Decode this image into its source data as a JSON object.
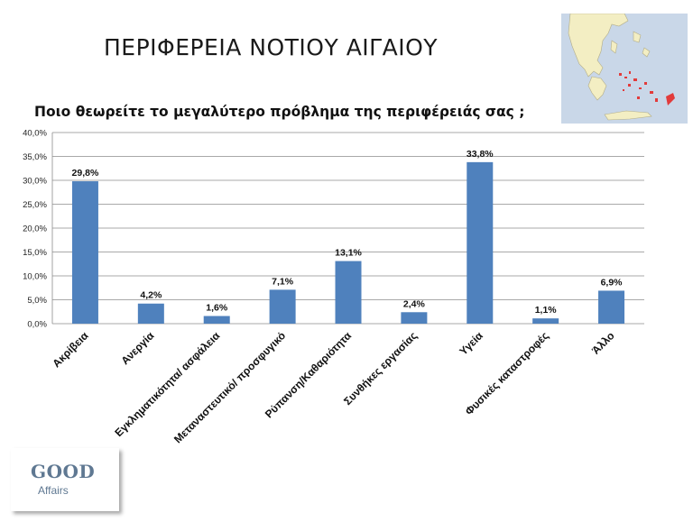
{
  "page": {
    "title": "ΠΕΡΙΦΕΡΕΙΑ ΝΟΤΙΟΥ ΑΙΓΑΙΟΥ",
    "question": "Ποιο θεωρείτε το μεγαλύτερο πρόβλημα της περιφέρειάς σας ;"
  },
  "logo": {
    "word1": "GOOD",
    "word2": "Affairs"
  },
  "colors": {
    "bar": "#4f81bd",
    "grid": "#8c8c8c",
    "map_sea": "#c9d7e8",
    "map_land": "#f3eec3",
    "map_highlight": "#e23b3b"
  },
  "chart_data": {
    "type": "bar",
    "categories": [
      "Ακρίβεια",
      "Ανεργία",
      "Εγκληματικότητα/ ασφάλεια",
      "Μεταναστευτικό/ προσφυγικό",
      "Ρύπανση/Καθαριότητα",
      "Συνθήκες εργασίας",
      "Υγεία",
      "Φυσικές καταστροφές",
      "Άλλο"
    ],
    "values": [
      29.8,
      4.2,
      1.6,
      7.1,
      13.1,
      2.4,
      33.8,
      1.1,
      6.9
    ],
    "data_labels": [
      "29,8%",
      "4,2%",
      "1,6%",
      "7,1%",
      "13,1%",
      "2,4%",
      "33,8%",
      "1,1%",
      "6,9%"
    ],
    "ylim": [
      0,
      40
    ],
    "yticks": [
      "0,0%",
      "5,0%",
      "10,0%",
      "15,0%",
      "20,0%",
      "25,0%",
      "30,0%",
      "35,0%",
      "40,0%"
    ],
    "grid": true,
    "legend": "none"
  }
}
